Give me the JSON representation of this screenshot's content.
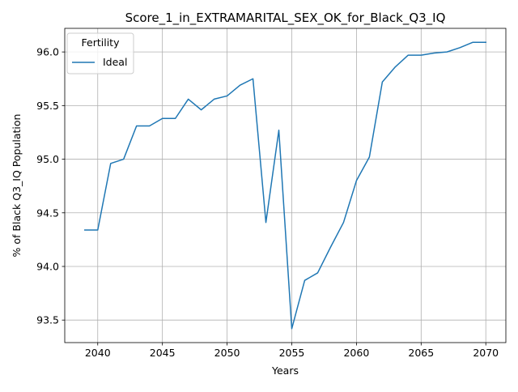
{
  "chart_data": {
    "type": "line",
    "title": "Score_1_in_EXTRAMARITAL_SEX_OK_for_Black_Q3_IQ",
    "xlabel": "Years",
    "ylabel": "% of Black Q3_IQ Population",
    "xlim": [
      2037.45,
      2071.55
    ],
    "ylim": [
      93.29,
      96.22
    ],
    "xticks": [
      2040,
      2045,
      2050,
      2055,
      2060,
      2065,
      2070
    ],
    "yticks": [
      93.5,
      94.0,
      94.5,
      95.0,
      95.5,
      96.0
    ],
    "xtick_labels": [
      "2040",
      "2045",
      "2050",
      "2055",
      "2060",
      "2065",
      "2070"
    ],
    "ytick_labels": [
      "93.5",
      "94.0",
      "94.5",
      "95.0",
      "95.5",
      "96.0"
    ],
    "grid": true,
    "legend": {
      "title": "Fertility",
      "placement": "top-left"
    },
    "series": [
      {
        "name": "Ideal",
        "color": "#1f77b4",
        "x": [
          2039,
          2040,
          2041,
          2042,
          2043,
          2044,
          2045,
          2046,
          2047,
          2048,
          2049,
          2050,
          2051,
          2052,
          2053,
          2054,
          2055,
          2056,
          2057,
          2058,
          2059,
          2060,
          2061,
          2062,
          2063,
          2064,
          2065,
          2066,
          2067,
          2068,
          2069,
          2070
        ],
        "y": [
          94.34,
          94.34,
          94.96,
          95.0,
          95.31,
          95.31,
          95.38,
          95.38,
          95.56,
          95.46,
          95.56,
          95.59,
          95.69,
          95.75,
          94.41,
          95.27,
          93.42,
          93.87,
          93.94,
          94.18,
          94.41,
          94.8,
          95.02,
          95.72,
          95.86,
          95.97,
          95.97,
          95.99,
          96.0,
          96.04,
          96.09,
          96.09
        ]
      }
    ]
  }
}
